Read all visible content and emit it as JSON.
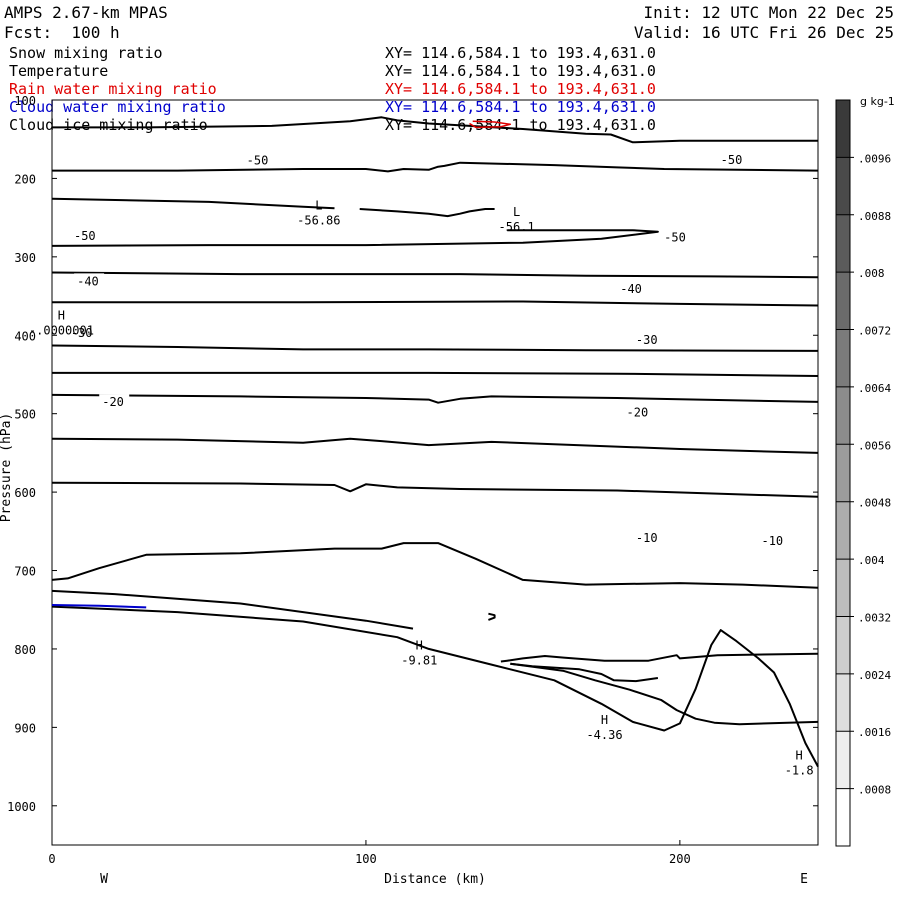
{
  "header": {
    "model": "AMPS 2.67-km MPAS",
    "fcst": "Fcst:  100 h",
    "init": "Init: 12 UTC Mon 22 Dec 25",
    "valid": "Valid: 16 UTC Fri 26 Dec 25"
  },
  "fields": [
    {
      "name": "Snow mixing ratio",
      "xy": "XY= 114.6,584.1 to 193.4,631.0",
      "color": "#000000"
    },
    {
      "name": "Temperature",
      "xy": "XY= 114.6,584.1 to 193.4,631.0",
      "color": "#000000"
    },
    {
      "name": "Rain water mixing ratio",
      "xy": "XY= 114.6,584.1 to 193.4,631.0",
      "color": "#e00000"
    },
    {
      "name": "Cloud water mixing ratio",
      "xy": "XY= 114.6,584.1 to 193.4,631.0",
      "color": "#0000cc"
    },
    {
      "name": "Cloud ice mixing ratio",
      "xy": "XY= 114.6,584.1 to 193.4,631.0",
      "color": "#000000"
    }
  ],
  "chart_data": {
    "type": "contour",
    "xlabel": "Distance (km)",
    "ylabel": "Pressure (hPa)",
    "xlim": [
      0,
      244
    ],
    "ylim": [
      100,
      1050
    ],
    "x_ticks": [
      0,
      100,
      200
    ],
    "y_ticks": [
      100,
      200,
      300,
      400,
      500,
      600,
      700,
      800,
      900,
      1000
    ],
    "west_label": "W",
    "east_label": "E",
    "colorbar": {
      "unit": "g kg-1",
      "ticks": [
        ".0096",
        ".0088",
        ".008",
        ".0072",
        ".0064",
        ".0056",
        ".0048",
        ".004",
        ".0032",
        ".0024",
        ".0016",
        ".0008"
      ],
      "tick_values": [
        0.0096,
        0.0088,
        0.008,
        0.0072,
        0.0064,
        0.0056,
        0.0048,
        0.004,
        0.0032,
        0.0024,
        0.0016,
        0.0008
      ],
      "min": 0,
      "max": 0.0104
    },
    "contour_labels": [
      {
        "text": "-50",
        "x": 62,
        "p": 176
      },
      {
        "text": "-50",
        "x": 213,
        "p": 175
      },
      {
        "text": "-50",
        "x": 7,
        "p": 272
      },
      {
        "text": "-50",
        "x": 195,
        "p": 274
      },
      {
        "text": "-40",
        "x": 8,
        "p": 330
      },
      {
        "text": "-40",
        "x": 181,
        "p": 340
      },
      {
        "text": "-30",
        "x": 6,
        "p": 396
      },
      {
        "text": "-30",
        "x": 186,
        "p": 405
      },
      {
        "text": "-20",
        "x": 16,
        "p": 484
      },
      {
        "text": "-20",
        "x": 183,
        "p": 497
      },
      {
        "text": "-10",
        "x": 186,
        "p": 657
      },
      {
        "text": "-10",
        "x": 226,
        "p": 661
      }
    ],
    "extrema": [
      {
        "type": "L",
        "value": "-56.86",
        "x": 85,
        "p": 250
      },
      {
        "type": "L",
        "value": "-56.1",
        "x": 148,
        "p": 258
      },
      {
        "type": "H",
        "value": "-.0000001",
        "x": 3,
        "p": 390
      },
      {
        "type": "H",
        "value": "-9.81",
        "x": 117,
        "p": 811
      },
      {
        "type": "H",
        "value": "-4.36",
        "x": 176,
        "p": 906
      },
      {
        "type": "H",
        "value": "-1.8",
        "x": 238,
        "p": 951
      }
    ],
    "isotherms": [
      [
        [
          0,
          135
        ],
        [
          30,
          135
        ],
        [
          70,
          133
        ],
        [
          95,
          127
        ],
        [
          105,
          122
        ],
        [
          110,
          126
        ],
        [
          120,
          130
        ],
        [
          150,
          137
        ],
        [
          170,
          143
        ],
        [
          178,
          144
        ],
        [
          185,
          154
        ],
        [
          200,
          152
        ],
        [
          244,
          152
        ]
      ],
      [
        [
          0,
          190
        ],
        [
          40,
          190
        ],
        [
          80,
          188
        ],
        [
          100,
          188
        ],
        [
          107,
          191
        ],
        [
          112,
          188
        ],
        [
          120,
          189
        ],
        [
          123,
          185
        ],
        [
          125,
          184
        ],
        [
          130,
          180
        ],
        [
          160,
          183
        ],
        [
          180,
          186
        ],
        [
          195,
          188
        ],
        [
          244,
          190
        ]
      ],
      [
        [
          0,
          226
        ],
        [
          50,
          230
        ],
        [
          80,
          236
        ],
        [
          90,
          238
        ]
      ],
      [
        [
          98,
          239
        ],
        [
          110,
          242
        ],
        [
          120,
          245
        ],
        [
          126,
          248
        ],
        [
          130,
          245
        ],
        [
          133,
          242
        ],
        [
          138,
          239
        ],
        [
          141,
          239
        ]
      ],
      [
        [
          0,
          286
        ],
        [
          50,
          285
        ],
        [
          100,
          285
        ],
        [
          150,
          282
        ],
        [
          175,
          277
        ],
        [
          193,
          268
        ],
        [
          185,
          266
        ],
        [
          170,
          266
        ],
        [
          155,
          266
        ],
        [
          145,
          266
        ]
      ],
      [
        [
          0,
          320
        ],
        [
          60,
          322
        ],
        [
          100,
          322
        ],
        [
          130,
          322
        ],
        [
          170,
          324
        ],
        [
          210,
          325
        ],
        [
          244,
          326
        ]
      ],
      [
        [
          0,
          358
        ],
        [
          80,
          358
        ],
        [
          150,
          357
        ],
        [
          200,
          360
        ],
        [
          244,
          362
        ]
      ],
      [
        [
          0,
          413
        ],
        [
          40,
          415
        ],
        [
          80,
          418
        ],
        [
          120,
          418
        ],
        [
          170,
          419
        ],
        [
          244,
          420
        ]
      ],
      [
        [
          0,
          448
        ],
        [
          60,
          448
        ],
        [
          120,
          448
        ],
        [
          180,
          449
        ],
        [
          244,
          452
        ]
      ],
      [
        [
          0,
          476
        ],
        [
          60,
          478
        ],
        [
          100,
          480
        ],
        [
          120,
          482
        ],
        [
          123,
          486
        ],
        [
          130,
          481
        ],
        [
          140,
          478
        ],
        [
          180,
          480
        ],
        [
          244,
          485
        ]
      ],
      [
        [
          0,
          532
        ],
        [
          40,
          533
        ],
        [
          80,
          537
        ],
        [
          95,
          532
        ],
        [
          105,
          535
        ],
        [
          120,
          540
        ],
        [
          140,
          536
        ],
        [
          200,
          545
        ],
        [
          244,
          550
        ]
      ],
      [
        [
          0,
          588
        ],
        [
          60,
          589
        ],
        [
          90,
          591
        ],
        [
          95,
          599
        ],
        [
          100,
          590
        ],
        [
          110,
          594
        ],
        [
          130,
          596
        ],
        [
          180,
          598
        ],
        [
          244,
          606
        ]
      ],
      [
        [
          0,
          712
        ],
        [
          5,
          710
        ],
        [
          15,
          697
        ],
        [
          30,
          680
        ],
        [
          60,
          678
        ],
        [
          90,
          672
        ],
        [
          105,
          672
        ],
        [
          112,
          665
        ],
        [
          123,
          665
        ],
        [
          135,
          685
        ],
        [
          150,
          712
        ],
        [
          170,
          718
        ],
        [
          200,
          716
        ],
        [
          220,
          718
        ],
        [
          244,
          722
        ]
      ],
      [
        [
          0,
          726
        ],
        [
          20,
          730
        ],
        [
          60,
          742
        ],
        [
          100,
          764
        ],
        [
          115,
          774
        ]
      ],
      [
        [
          139,
          755
        ],
        [
          141,
          757
        ],
        [
          141,
          760
        ],
        [
          139,
          763
        ]
      ],
      [
        [
          143,
          816
        ],
        [
          145,
          815
        ],
        [
          150,
          812
        ],
        [
          157,
          809
        ],
        [
          163,
          811
        ],
        [
          176,
          815
        ],
        [
          190,
          815
        ],
        [
          199,
          808
        ],
        [
          200,
          812
        ],
        [
          212,
          808
        ],
        [
          244,
          806
        ]
      ],
      [
        [
          193,
          837
        ],
        [
          186,
          841
        ],
        [
          179,
          840
        ],
        [
          175,
          832
        ],
        [
          168,
          826
        ],
        [
          153,
          822
        ],
        [
          146,
          819
        ]
      ],
      [
        [
          146,
          819
        ],
        [
          152,
          822
        ],
        [
          163,
          828
        ],
        [
          173,
          840
        ],
        [
          184,
          852
        ],
        [
          194,
          865
        ],
        [
          199,
          878
        ],
        [
          205,
          889
        ],
        [
          211,
          894
        ],
        [
          219,
          896
        ],
        [
          244,
          893
        ]
      ]
    ],
    "terrain": [
      [
        0,
        746
      ],
      [
        40,
        753
      ],
      [
        80,
        765
      ],
      [
        110,
        785
      ],
      [
        120,
        800
      ],
      [
        140,
        820
      ],
      [
        160,
        840
      ],
      [
        175,
        870
      ],
      [
        185,
        893
      ],
      [
        195,
        904
      ],
      [
        200,
        895
      ],
      [
        205,
        851
      ],
      [
        210,
        795
      ],
      [
        213,
        776
      ],
      [
        218,
        790
      ],
      [
        225,
        812
      ],
      [
        230,
        830
      ],
      [
        235,
        870
      ],
      [
        240,
        920
      ],
      [
        244,
        950
      ]
    ],
    "cloud_water": [
      [
        0,
        744
      ],
      [
        15,
        745
      ],
      [
        30,
        747
      ]
    ],
    "rain_loop": [
      [
        134,
        127
      ],
      [
        141,
        128
      ],
      [
        146,
        131
      ],
      [
        143,
        134
      ],
      [
        135,
        135
      ],
      [
        133,
        130
      ]
    ]
  }
}
